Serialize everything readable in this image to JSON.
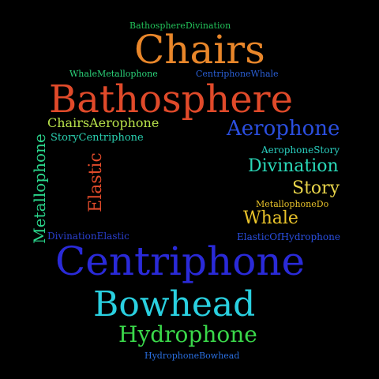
{
  "words": [
    {
      "id": "BathosphereDivination",
      "text": "BathosphereDivination",
      "color": "#22c25a"
    },
    {
      "id": "Chairs",
      "text": "Chairs",
      "color": "#e8862a"
    },
    {
      "id": "WhaleMetallophone",
      "text": "WhaleMetallophone",
      "color": "#2bd47a"
    },
    {
      "id": "CentriphoneWhale",
      "text": "CentriphoneWhale",
      "color": "#2a5fd6"
    },
    {
      "id": "Bathosphere",
      "text": "Bathosphere",
      "color": "#e04a2a"
    },
    {
      "id": "ChairsAerophone",
      "text": "ChairsAerophone",
      "color": "#b8e24a"
    },
    {
      "id": "Aerophone",
      "text": "Aerophone",
      "color": "#2b4fe0"
    },
    {
      "id": "StoryCentriphone",
      "text": "StoryCentriphone",
      "color": "#2ad0b0"
    },
    {
      "id": "AerophoneStory",
      "text": "AerophoneStory",
      "color": "#2ad0c0"
    },
    {
      "id": "Divination",
      "text": "Divination",
      "color": "#2ad8b8"
    },
    {
      "id": "Elastic",
      "text": "Elastic",
      "color": "#e04a2a"
    },
    {
      "id": "Metallophone",
      "text": "Metallophone",
      "color": "#2ad48a"
    },
    {
      "id": "Story",
      "text": "Story",
      "color": "#e8d44a"
    },
    {
      "id": "MetallophoneDo",
      "text": "MetallophoneDo",
      "color": "#e8c22a"
    },
    {
      "id": "Whale",
      "text": "Whale",
      "color": "#e8c22a"
    },
    {
      "id": "DivinationElastic",
      "text": "DivinationElastic",
      "color": "#2a3fd0"
    },
    {
      "id": "ElasticOfHydrophone",
      "text": "ElasticOfHydrophone",
      "color": "#2a4fe0"
    },
    {
      "id": "Centriphone",
      "text": "Centriphone",
      "color": "#2a2ad8"
    },
    {
      "id": "Bowhead",
      "text": "Bowhead",
      "color": "#2ad0e0"
    },
    {
      "id": "Hydrophone",
      "text": "Hydrophone",
      "color": "#3ad84a"
    },
    {
      "id": "HydrophoneBowhead",
      "text": "HydrophoneBowhead",
      "color": "#2a6fe0"
    }
  ]
}
